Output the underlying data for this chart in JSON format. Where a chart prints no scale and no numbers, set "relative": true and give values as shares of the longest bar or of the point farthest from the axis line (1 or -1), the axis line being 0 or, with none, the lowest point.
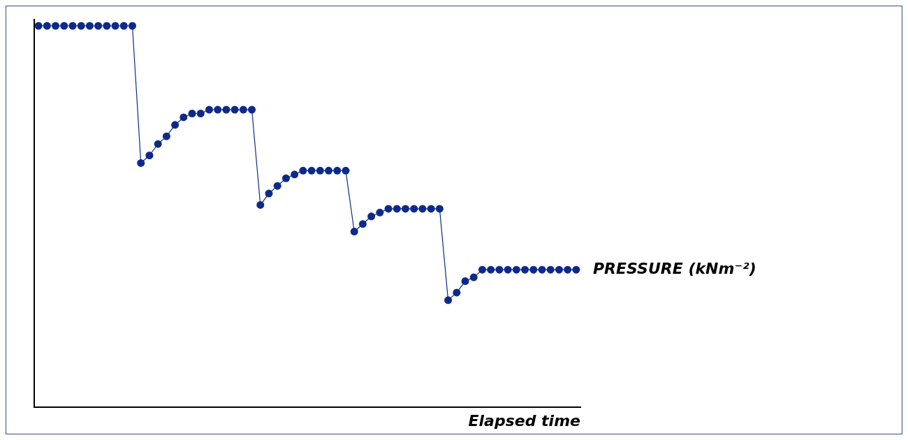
{
  "chart_data": {
    "type": "line",
    "relative": true,
    "xlabel": "Elapsed time",
    "legend": false,
    "marker": "circle",
    "line_style": "solid",
    "categories": [
      null,
      null,
      null,
      null,
      null,
      null,
      null,
      null,
      null,
      null,
      null,
      null,
      null,
      null,
      null,
      null,
      null,
      null,
      null,
      null,
      null,
      null,
      null,
      null,
      null,
      null,
      null,
      null,
      null,
      null,
      null,
      null,
      null,
      null,
      null,
      null,
      null,
      null,
      null,
      null,
      null,
      null,
      null,
      null,
      null,
      null,
      null,
      null,
      null,
      null,
      null,
      null,
      null,
      null,
      null,
      null,
      null,
      null,
      null,
      null,
      null,
      null,
      null,
      null
    ],
    "series": [
      {
        "name": "PRESSURE (kNm⁻²)",
        "color": "#0d2a8a",
        "values": [
          1,
          1,
          1,
          1,
          1,
          1,
          1,
          1,
          1,
          1,
          1,
          1,
          0.64,
          0.66,
          0.69,
          0.71,
          0.74,
          0.76,
          0.77,
          0.77,
          0.78,
          0.78,
          0.78,
          0.78,
          0.78,
          0.78,
          0.53,
          0.56,
          0.58,
          0.6,
          0.61,
          0.62,
          0.62,
          0.62,
          0.62,
          0.62,
          0.62,
          0.46,
          0.48,
          0.5,
          0.51,
          0.52,
          0.52,
          0.52,
          0.52,
          0.52,
          0.52,
          0.52,
          0.28,
          0.3,
          0.33,
          0.34,
          0.36,
          0.36,
          0.36,
          0.36,
          0.36,
          0.36,
          0.36,
          0.36,
          0.36,
          0.36,
          0.36,
          0.36
        ]
      }
    ]
  }
}
